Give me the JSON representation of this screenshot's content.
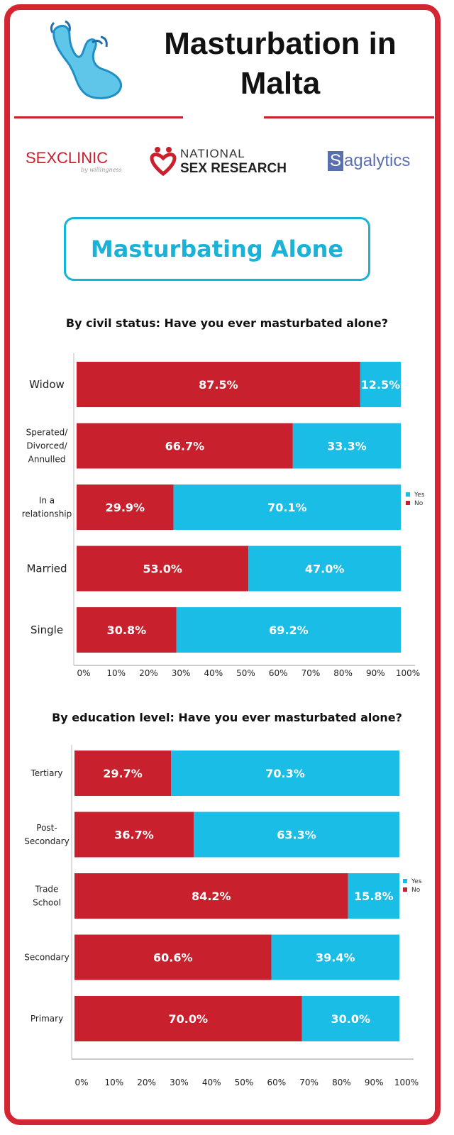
{
  "header": {
    "title_line1": "Masturbation in",
    "title_line2": "Malta"
  },
  "logos": {
    "sexclinic_main": "SEX",
    "sexclinic_main2": "CLINIC",
    "sexclinic_sub": "by willingness",
    "nsr_line1": "NATIONAL",
    "nsr_line2": "SEX RESEARCH",
    "sagalytics_first": "S",
    "sagalytics_rest": "agalytics"
  },
  "section_title": "Masturbating Alone",
  "colors": {
    "no": "#c8202c",
    "yes": "#19bde6",
    "accent": "#d42632",
    "title_accent": "#1ab2d6"
  },
  "chart_data": [
    {
      "type": "bar",
      "orientation": "horizontal",
      "stacked": true,
      "title": "By civil status: Have you ever masturbated alone?",
      "categories": [
        "Widow",
        "Sperated/ Divorced/ Annulled",
        "In a relationship",
        "Married",
        "Single"
      ],
      "category_lines": [
        [
          "Widow"
        ],
        [
          "Sperated/",
          "Divorced/",
          "Annulled"
        ],
        [
          "In a",
          "relationship"
        ],
        [
          "Married"
        ],
        [
          "Single"
        ]
      ],
      "category_big": [
        true,
        false,
        false,
        true,
        true
      ],
      "series": [
        {
          "name": "No",
          "values": [
            87.5,
            66.7,
            29.9,
            53.0,
            30.8
          ],
          "labels": [
            "87.5%",
            "66.7%",
            "29.9%",
            "53.0%",
            "30.8%"
          ]
        },
        {
          "name": "Yes",
          "values": [
            12.5,
            33.3,
            70.1,
            47.0,
            69.2
          ],
          "labels": [
            "12.5%",
            "33.3%",
            "70.1%",
            "47.0%",
            "69.2%"
          ]
        }
      ],
      "xlim": [
        0,
        100
      ],
      "ticks": [
        "0%",
        "10%",
        "20%",
        "30%",
        "40%",
        "50%",
        "60%",
        "70%",
        "80%",
        "90%",
        "100%"
      ],
      "legend": [
        "Yes",
        "No"
      ],
      "legend_position": "right"
    },
    {
      "type": "bar",
      "orientation": "horizontal",
      "stacked": true,
      "title": "By education level: Have you ever masturbated alone?",
      "categories": [
        "Tertiary",
        "Post- Secondary",
        "Trade School",
        "Secondary",
        "Primary"
      ],
      "category_lines": [
        [
          "Tertiary"
        ],
        [
          "Post-",
          "Secondary"
        ],
        [
          "Trade",
          "School"
        ],
        [
          "Secondary"
        ],
        [
          "Primary"
        ]
      ],
      "category_big": [
        false,
        false,
        false,
        false,
        false
      ],
      "series": [
        {
          "name": "No",
          "values": [
            29.7,
            36.7,
            84.2,
            60.6,
            70.0
          ],
          "labels": [
            "29.7%",
            "36.7%",
            "84.2%",
            "60.6%",
            "70.0%"
          ]
        },
        {
          "name": "Yes",
          "values": [
            70.3,
            63.3,
            15.8,
            39.4,
            30.0
          ],
          "labels": [
            "70.3%",
            "63.3%",
            "15.8%",
            "39.4%",
            "30.0%"
          ]
        }
      ],
      "xlim": [
        0,
        100
      ],
      "ticks": [
        "0%",
        "10%",
        "20%",
        "30%",
        "40%",
        "50%",
        "60%",
        "70%",
        "80%",
        "90%",
        "100%"
      ],
      "legend": [
        "Yes",
        "No"
      ],
      "legend_position": "right"
    }
  ]
}
